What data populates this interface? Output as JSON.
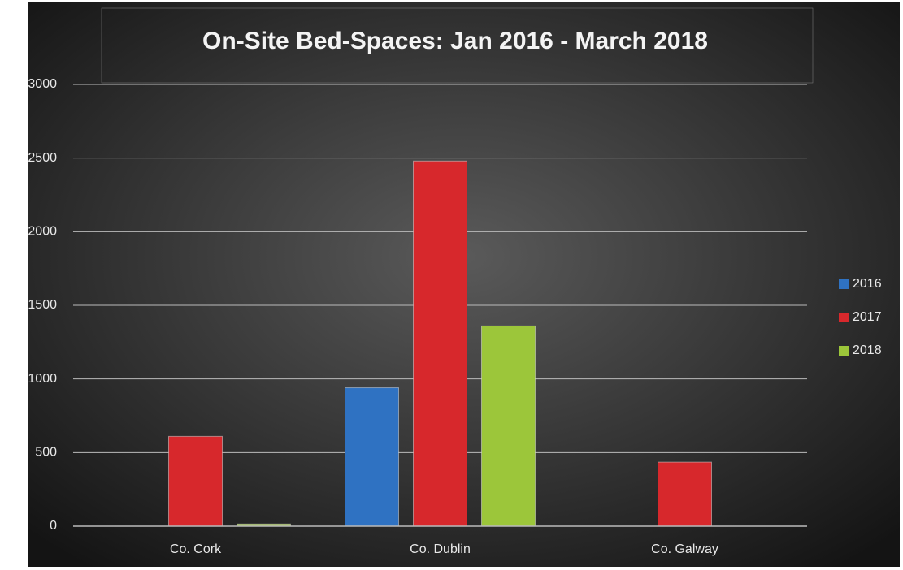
{
  "chart_data": {
    "type": "bar",
    "title": "On-Site Bed-Spaces: Jan 2016 - March 2018",
    "categories": [
      "Co. Cork",
      "Co. Dublin",
      "Co. Galway"
    ],
    "series": [
      {
        "name": "2016",
        "color": "#2f72c2",
        "values": [
          0,
          940,
          0
        ]
      },
      {
        "name": "2017",
        "color": "#d7282c",
        "values": [
          610,
          2480,
          435
        ]
      },
      {
        "name": "2018",
        "color": "#9cc63a",
        "values": [
          15,
          1360,
          0
        ]
      }
    ],
    "ylim": [
      0,
      3000
    ],
    "yticks": [
      0,
      500,
      1000,
      1500,
      2000,
      2500,
      3000
    ],
    "grid": true,
    "legend": "right"
  }
}
